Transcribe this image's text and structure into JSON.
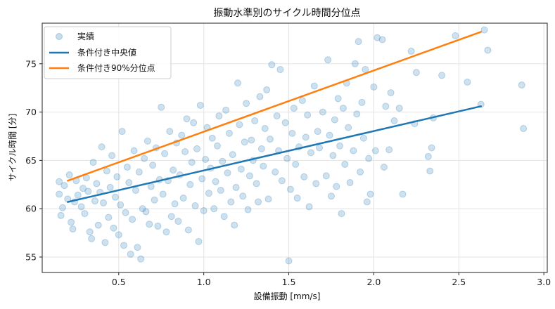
{
  "chart_data": {
    "type": "scatter",
    "title": "振動水準別のサイクル時間分位点",
    "xlabel": "設備振動 [mm/s]",
    "ylabel": "サイクル時間 [分]",
    "xlim": [
      0.05,
      3.02
    ],
    "ylim": [
      53.4,
      79.2
    ],
    "xticks": [
      0.5,
      1.0,
      1.5,
      2.0,
      2.5,
      3.0
    ],
    "xtick_labels": [
      "0.5",
      "1.0",
      "1.5",
      "2.0",
      "2.5",
      "3.0"
    ],
    "yticks": [
      55,
      60,
      65,
      70,
      75
    ],
    "ytick_labels": [
      "55",
      "60",
      "65",
      "70",
      "75"
    ],
    "grid": true,
    "legend_position": "top-left",
    "series": [
      {
        "name": "実績",
        "kind": "scatter",
        "color": "#1f77b4",
        "points": [
          [
            0.15,
            62.8
          ],
          [
            0.15,
            61.5
          ],
          [
            0.16,
            59.3
          ],
          [
            0.17,
            60.1
          ],
          [
            0.18,
            62.4
          ],
          [
            0.2,
            61.0
          ],
          [
            0.21,
            63.5
          ],
          [
            0.22,
            58.6
          ],
          [
            0.23,
            57.9
          ],
          [
            0.24,
            60.7
          ],
          [
            0.25,
            62.9
          ],
          [
            0.26,
            61.4
          ],
          [
            0.28,
            60.2
          ],
          [
            0.29,
            62.1
          ],
          [
            0.3,
            59.5
          ],
          [
            0.31,
            63.2
          ],
          [
            0.32,
            61.8
          ],
          [
            0.33,
            57.6
          ],
          [
            0.34,
            56.9
          ],
          [
            0.35,
            64.8
          ],
          [
            0.36,
            60.8
          ],
          [
            0.37,
            62.6
          ],
          [
            0.38,
            58.3
          ],
          [
            0.39,
            61.7
          ],
          [
            0.4,
            66.4
          ],
          [
            0.41,
            60.6
          ],
          [
            0.42,
            56.5
          ],
          [
            0.43,
            63.9
          ],
          [
            0.44,
            59.1
          ],
          [
            0.45,
            62.2
          ],
          [
            0.46,
            65.5
          ],
          [
            0.47,
            58.0
          ],
          [
            0.48,
            61.2
          ],
          [
            0.49,
            63.3
          ],
          [
            0.5,
            57.3
          ],
          [
            0.51,
            60.4
          ],
          [
            0.52,
            68.0
          ],
          [
            0.53,
            56.2
          ],
          [
            0.54,
            59.6
          ],
          [
            0.55,
            64.3
          ],
          [
            0.56,
            62.7
          ],
          [
            0.57,
            55.3
          ],
          [
            0.58,
            58.9
          ],
          [
            0.59,
            66.0
          ],
          [
            0.6,
            61.9
          ],
          [
            0.61,
            56.0
          ],
          [
            0.62,
            63.8
          ],
          [
            0.63,
            54.8
          ],
          [
            0.64,
            60.0
          ],
          [
            0.65,
            65.2
          ],
          [
            0.66,
            59.7
          ],
          [
            0.67,
            67.0
          ],
          [
            0.68,
            58.4
          ],
          [
            0.69,
            62.3
          ],
          [
            0.7,
            64.5
          ],
          [
            0.71,
            60.9
          ],
          [
            0.72,
            66.3
          ],
          [
            0.73,
            58.2
          ],
          [
            0.74,
            63.0
          ],
          [
            0.75,
            70.5
          ],
          [
            0.76,
            61.5
          ],
          [
            0.77,
            65.7
          ],
          [
            0.78,
            57.6
          ],
          [
            0.79,
            62.9
          ],
          [
            0.8,
            68.0
          ],
          [
            0.81,
            59.2
          ],
          [
            0.82,
            64.0
          ],
          [
            0.83,
            60.5
          ],
          [
            0.84,
            66.8
          ],
          [
            0.85,
            58.7
          ],
          [
            0.86,
            63.5
          ],
          [
            0.87,
            67.6
          ],
          [
            0.88,
            61.1
          ],
          [
            0.89,
            65.9
          ],
          [
            0.9,
            69.3
          ],
          [
            0.91,
            57.8
          ],
          [
            0.92,
            62.5
          ],
          [
            0.93,
            64.8
          ],
          [
            0.94,
            68.9
          ],
          [
            0.95,
            60.3
          ],
          [
            0.96,
            66.2
          ],
          [
            0.97,
            56.6
          ],
          [
            0.98,
            70.7
          ],
          [
            0.99,
            63.1
          ],
          [
            1.0,
            59.8
          ],
          [
            1.01,
            65.1
          ],
          [
            1.02,
            68.4
          ],
          [
            1.03,
            61.6
          ],
          [
            1.04,
            64.2
          ],
          [
            1.05,
            67.3
          ],
          [
            1.06,
            60.0
          ],
          [
            1.07,
            62.8
          ],
          [
            1.08,
            66.5
          ],
          [
            1.09,
            69.6
          ],
          [
            1.1,
            61.9
          ],
          [
            1.11,
            64.9
          ],
          [
            1.12,
            59.2
          ],
          [
            1.13,
            70.2
          ],
          [
            1.14,
            63.7
          ],
          [
            1.15,
            67.8
          ],
          [
            1.16,
            60.7
          ],
          [
            1.17,
            65.6
          ],
          [
            1.18,
            58.3
          ],
          [
            1.19,
            62.2
          ],
          [
            1.2,
            73.0
          ],
          [
            1.21,
            68.7
          ],
          [
            1.22,
            64.1
          ],
          [
            1.23,
            61.3
          ],
          [
            1.24,
            66.9
          ],
          [
            1.25,
            70.9
          ],
          [
            1.26,
            59.9
          ],
          [
            1.27,
            63.4
          ],
          [
            1.28,
            67.1
          ],
          [
            1.29,
            65.0
          ],
          [
            1.3,
            69.1
          ],
          [
            1.31,
            62.6
          ],
          [
            1.32,
            60.7
          ],
          [
            1.33,
            71.6
          ],
          [
            1.34,
            66.2
          ],
          [
            1.35,
            64.4
          ],
          [
            1.36,
            68.3
          ],
          [
            1.37,
            72.3
          ],
          [
            1.38,
            61.0
          ],
          [
            1.39,
            67.2
          ],
          [
            1.4,
            74.9
          ],
          [
            1.42,
            63.8
          ],
          [
            1.43,
            69.6
          ],
          [
            1.44,
            66.0
          ],
          [
            1.45,
            74.4
          ],
          [
            1.46,
            62.9
          ],
          [
            1.48,
            68.9
          ],
          [
            1.49,
            65.2
          ],
          [
            1.5,
            54.6
          ],
          [
            1.51,
            62.0
          ],
          [
            1.52,
            67.8
          ],
          [
            1.53,
            70.4
          ],
          [
            1.54,
            64.6
          ],
          [
            1.55,
            61.1
          ],
          [
            1.56,
            66.4
          ],
          [
            1.58,
            71.2
          ],
          [
            1.59,
            63.3
          ],
          [
            1.6,
            67.4
          ],
          [
            1.61,
            69.7
          ],
          [
            1.62,
            60.2
          ],
          [
            1.63,
            65.8
          ],
          [
            1.65,
            72.7
          ],
          [
            1.66,
            62.6
          ],
          [
            1.67,
            68.0
          ],
          [
            1.68,
            66.3
          ],
          [
            1.7,
            70.0
          ],
          [
            1.72,
            63.4
          ],
          [
            1.73,
            75.4
          ],
          [
            1.74,
            67.6
          ],
          [
            1.75,
            61.3
          ],
          [
            1.76,
            65.5
          ],
          [
            1.77,
            69.2
          ],
          [
            1.78,
            62.3
          ],
          [
            1.79,
            71.4
          ],
          [
            1.8,
            66.5
          ],
          [
            1.81,
            59.5
          ],
          [
            1.82,
            70.4
          ],
          [
            1.83,
            64.6
          ],
          [
            1.84,
            73.0
          ],
          [
            1.85,
            68.4
          ],
          [
            1.86,
            62.7
          ],
          [
            1.88,
            66.0
          ],
          [
            1.89,
            75.0
          ],
          [
            1.9,
            69.8
          ],
          [
            1.91,
            77.3
          ],
          [
            1.92,
            63.8
          ],
          [
            1.93,
            71.0
          ],
          [
            1.94,
            67.3
          ],
          [
            1.95,
            74.4
          ],
          [
            1.96,
            60.7
          ],
          [
            1.97,
            65.2
          ],
          [
            1.98,
            61.5
          ],
          [
            2.0,
            72.6
          ],
          [
            2.01,
            66.0
          ],
          [
            2.02,
            77.7
          ],
          [
            2.05,
            77.5
          ],
          [
            2.06,
            64.3
          ],
          [
            2.07,
            70.6
          ],
          [
            2.09,
            66.1
          ],
          [
            2.1,
            72.0
          ],
          [
            2.12,
            69.1
          ],
          [
            2.15,
            70.4
          ],
          [
            2.17,
            61.5
          ],
          [
            2.22,
            76.3
          ],
          [
            2.24,
            68.8
          ],
          [
            2.25,
            74.1
          ],
          [
            2.32,
            65.4
          ],
          [
            2.33,
            63.9
          ],
          [
            2.34,
            66.3
          ],
          [
            2.35,
            69.4
          ],
          [
            2.4,
            73.8
          ],
          [
            2.48,
            77.9
          ],
          [
            2.55,
            73.1
          ],
          [
            2.63,
            70.8
          ],
          [
            2.65,
            78.5
          ],
          [
            2.67,
            76.4
          ],
          [
            2.87,
            72.8
          ],
          [
            2.88,
            68.3
          ]
        ]
      },
      {
        "name": "条件付き中央値",
        "kind": "line",
        "color": "#1f77b4",
        "x": [
          0.2,
          2.63
        ],
        "y": [
          60.7,
          70.6
        ]
      },
      {
        "name": "条件付き90%分位点",
        "kind": "line",
        "color": "#ff7f0e",
        "x": [
          0.2,
          2.63
        ],
        "y": [
          62.9,
          78.3
        ]
      }
    ]
  }
}
